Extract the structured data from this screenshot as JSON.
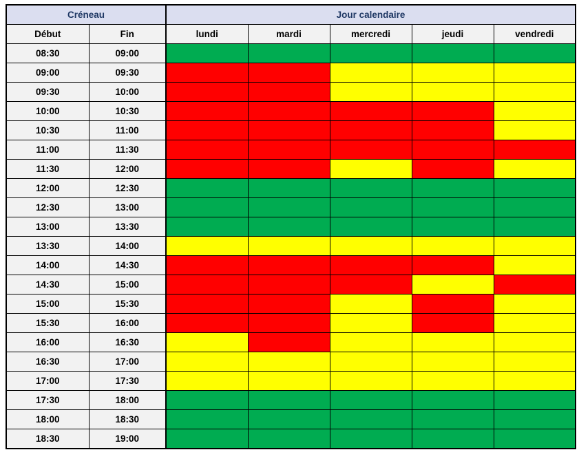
{
  "colors": {
    "green": "#00AC51",
    "yellow": "#FFFF00",
    "red": "#FF0000",
    "header_blue_bg": "#DBDEF0",
    "header_text": "#1F3864",
    "subheader_bg": "#F2F2F2",
    "time_cell_bg": "#F2F2F2",
    "border": "#000000"
  },
  "chart_data": {
    "type": "heatmap",
    "rows_header_group": "Créneau",
    "columns_header_group": "Jour calendaire",
    "row_header_labels": [
      "Début",
      "Fin"
    ],
    "x_categories": [
      "lundi",
      "mardi",
      "mercredi",
      "jeudi",
      "vendredi"
    ],
    "status_colors": {
      "green": "#00AC51",
      "yellow": "#FFFF00",
      "red": "#FF0000"
    },
    "time_slots": [
      {
        "debut": "08:30",
        "fin": "09:00"
      },
      {
        "debut": "09:00",
        "fin": "09:30"
      },
      {
        "debut": "09:30",
        "fin": "10:00"
      },
      {
        "debut": "10:00",
        "fin": "10:30"
      },
      {
        "debut": "10:30",
        "fin": "11:00"
      },
      {
        "debut": "11:00",
        "fin": "11:30"
      },
      {
        "debut": "11:30",
        "fin": "12:00"
      },
      {
        "debut": "12:00",
        "fin": "12:30"
      },
      {
        "debut": "12:30",
        "fin": "13:00"
      },
      {
        "debut": "13:00",
        "fin": "13:30"
      },
      {
        "debut": "13:30",
        "fin": "14:00"
      },
      {
        "debut": "14:00",
        "fin": "14:30"
      },
      {
        "debut": "14:30",
        "fin": "15:00"
      },
      {
        "debut": "15:00",
        "fin": "15:30"
      },
      {
        "debut": "15:30",
        "fin": "16:00"
      },
      {
        "debut": "16:00",
        "fin": "16:30"
      },
      {
        "debut": "16:30",
        "fin": "17:00"
      },
      {
        "debut": "17:00",
        "fin": "17:30"
      },
      {
        "debut": "17:30",
        "fin": "18:00"
      },
      {
        "debut": "18:00",
        "fin": "18:30"
      },
      {
        "debut": "18:30",
        "fin": "19:00"
      }
    ],
    "cell_status": [
      [
        "green",
        "green",
        "green",
        "green",
        "green"
      ],
      [
        "red",
        "red",
        "yellow",
        "yellow",
        "yellow"
      ],
      [
        "red",
        "red",
        "yellow",
        "yellow",
        "yellow"
      ],
      [
        "red",
        "red",
        "red",
        "red",
        "yellow"
      ],
      [
        "red",
        "red",
        "red",
        "red",
        "yellow"
      ],
      [
        "red",
        "red",
        "red",
        "red",
        "red"
      ],
      [
        "red",
        "red",
        "yellow",
        "red",
        "yellow"
      ],
      [
        "green",
        "green",
        "green",
        "green",
        "green"
      ],
      [
        "green",
        "green",
        "green",
        "green",
        "green"
      ],
      [
        "green",
        "green",
        "green",
        "green",
        "green"
      ],
      [
        "yellow",
        "yellow",
        "yellow",
        "yellow",
        "yellow"
      ],
      [
        "red",
        "red",
        "red",
        "red",
        "yellow"
      ],
      [
        "red",
        "red",
        "red",
        "yellow",
        "red"
      ],
      [
        "red",
        "red",
        "yellow",
        "red",
        "yellow"
      ],
      [
        "red",
        "red",
        "yellow",
        "red",
        "yellow"
      ],
      [
        "yellow",
        "red",
        "yellow",
        "yellow",
        "yellow"
      ],
      [
        "yellow",
        "yellow",
        "yellow",
        "yellow",
        "yellow"
      ],
      [
        "yellow",
        "yellow",
        "yellow",
        "yellow",
        "yellow"
      ],
      [
        "green",
        "green",
        "green",
        "green",
        "green"
      ],
      [
        "green",
        "green",
        "green",
        "green",
        "green"
      ],
      [
        "green",
        "green",
        "green",
        "green",
        "green"
      ]
    ]
  }
}
